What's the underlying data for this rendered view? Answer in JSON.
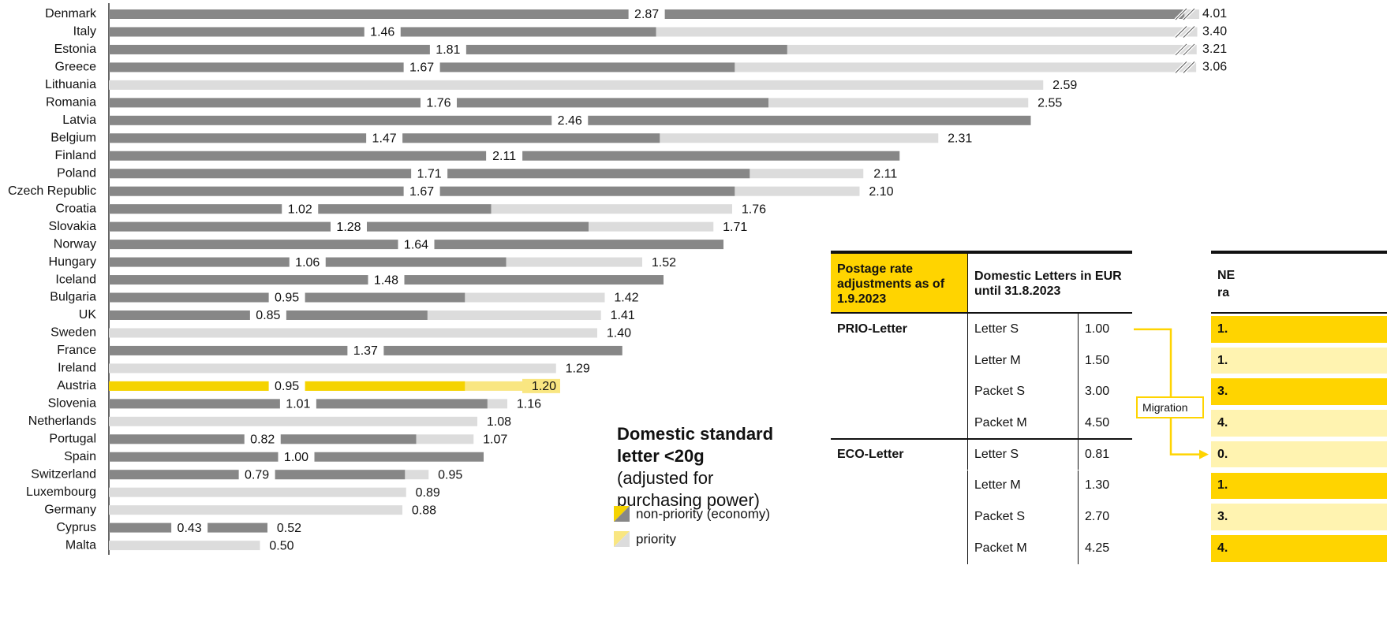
{
  "chart_data": {
    "type": "bar",
    "title": "Domestic standard letter <20g",
    "subtitle": "(adjusted for purchasing power)",
    "categories": [
      "Denmark",
      "Italy",
      "Estonia",
      "Greece",
      "Lithuania",
      "Romania",
      "Latvia",
      "Belgium",
      "Finland",
      "Poland",
      "Czech Republic",
      "Croatia",
      "Slovakia",
      "Norway",
      "Hungary",
      "Iceland",
      "Bulgaria",
      "UK",
      "Sweden",
      "France",
      "Ireland",
      "Austria",
      "Slovenia",
      "Netherlands",
      "Portugal",
      "Spain",
      "Switzerland",
      "Luxembourg",
      "Germany",
      "Cyprus",
      "Malta"
    ],
    "highlight": 21,
    "series": [
      {
        "name": "non-priority (economy)",
        "color": "#878787",
        "highlight_color": "#f5d300",
        "values": [
          2.87,
          1.46,
          1.81,
          1.67,
          null,
          1.76,
          2.46,
          1.47,
          2.11,
          1.71,
          1.67,
          1.02,
          1.28,
          1.64,
          1.06,
          1.48,
          0.95,
          0.85,
          null,
          1.37,
          null,
          0.95,
          1.01,
          null,
          0.82,
          1.0,
          0.79,
          null,
          null,
          0.43,
          null
        ],
        "value_labels": [
          "2.87",
          "1.46",
          "1.81",
          "1.67",
          null,
          "1.76",
          "2.46",
          "1.47",
          "2.11",
          "1.71",
          "1.67",
          "1.02",
          "1.28",
          "1.64",
          "1.06",
          "1.48",
          "0.95",
          "0.85",
          null,
          "1.37",
          null,
          "0.95",
          "1.01",
          null,
          "0.82",
          "1.00",
          "0.79",
          null,
          null,
          "0.43",
          null
        ]
      },
      {
        "name": "priority",
        "color": "#dcdcdc",
        "highlight_color": "#f9e681",
        "values": [
          4.01,
          3.4,
          3.21,
          3.06,
          2.59,
          2.55,
          null,
          2.31,
          null,
          2.11,
          2.1,
          1.76,
          1.71,
          null,
          1.52,
          null,
          1.42,
          1.41,
          1.4,
          null,
          1.29,
          1.2,
          1.16,
          1.08,
          1.07,
          null,
          0.95,
          0.89,
          0.88,
          0.52,
          0.5
        ],
        "value_labels": [
          "4.01",
          "3.40",
          "3.21",
          "3.06",
          "2.59",
          "2.55",
          null,
          "2.31",
          null,
          "2.11",
          "2.10",
          "1.76",
          "1.71",
          null,
          "1.52",
          null,
          "1.42",
          "1.41",
          "1.40",
          null,
          "1.29",
          "1.20",
          "1.16",
          "1.08",
          "1.07",
          null,
          "0.95",
          "0.89",
          "0.88",
          "0.52",
          "0.50"
        ]
      }
    ]
  },
  "table": {
    "header": [
      "Postage rate adjustments as of 1.9.2023",
      "Domestic Letters in EUR until 31.8.2023"
    ],
    "groups": [
      {
        "name": "PRIO-Letter",
        "rows": [
          [
            "Letter S",
            "1.00"
          ],
          [
            "Letter M",
            "1.50"
          ],
          [
            "Packet S",
            "3.00"
          ],
          [
            "Packet M",
            "4.50"
          ]
        ]
      },
      {
        "name": "ECO-Letter",
        "rows": [
          [
            "Letter S",
            "0.81"
          ],
          [
            "Letter M",
            "1.30"
          ],
          [
            "Packet S",
            "2.70"
          ],
          [
            "Packet M",
            "4.25"
          ]
        ]
      }
    ]
  },
  "migration": "Migration",
  "new_table": {
    "header": [
      "NE",
      "ra"
    ],
    "values": [
      "1.",
      "1.",
      "3.",
      "4.",
      "0.",
      "1.",
      "3.",
      "4."
    ]
  }
}
